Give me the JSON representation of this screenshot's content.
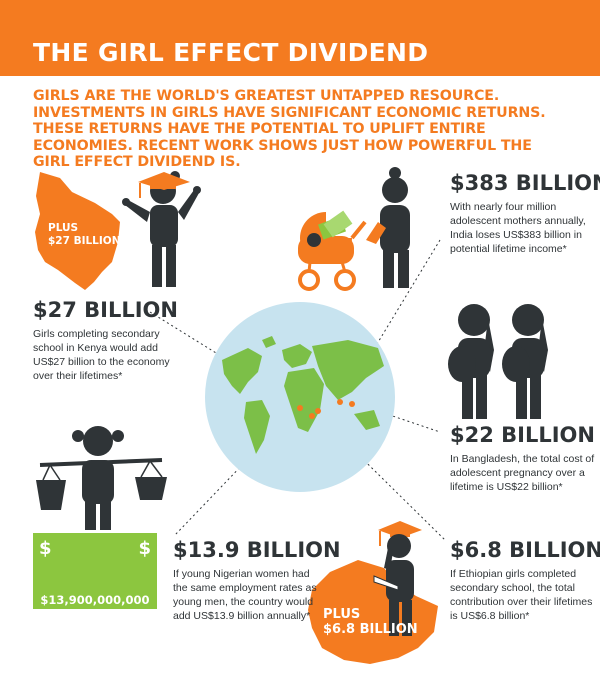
{
  "header": {
    "title": "THE GIRL EFFECT DIVIDEND"
  },
  "intro": "GIRLS ARE THE WORLD'S GREATEST UNTAPPED RESOURCE. INVESTMENTS IN GIRLS HAVE SIGNIFICANT ECONOMIC RETURNS. THESE RETURNS HAVE THE POTENTIAL TO UPLIFT ENTIRE ECONOMIES. RECENT WORK SHOWS JUST HOW POWERFUL THE GIRL EFFECT DIVIDEND IS.",
  "stats": {
    "india": {
      "amount": "$383 BILLION",
      "desc": "With nearly four million adolescent mothers annually, India loses US$383 billion in potential lifetime income*"
    },
    "kenya": {
      "amount": "$27 BILLION",
      "desc": "Girls completing secondary school in Kenya would add US$27 billion to the economy over their lifetimes*"
    },
    "bangladesh": {
      "amount": "$22 BILLION",
      "desc": "In Bangladesh, the total cost of adolescent pregnancy over a lifetime is US$22 billion*"
    },
    "nigeria": {
      "amount": "$13.9 BILLION",
      "desc": "If young Nigerian women had the same employment rates as young men, the country would add US$13.9 billion annually*"
    },
    "ethiopia": {
      "amount": "$6.8 BILLION",
      "desc": "If Ethiopian girls completed secondary school, the total contribution over their lifetimes is US$6.8 billion*"
    }
  },
  "tags": {
    "kenya_plus": "PLUS",
    "kenya_value": "$27 BILLION",
    "ethiopia_plus": "PLUS",
    "ethiopia_value": "$6.8 BILLION"
  },
  "money": {
    "symbol": "$",
    "amount": "$13,900,000,000"
  },
  "colors": {
    "orange": "#f47b20",
    "dark": "#2f3437",
    "green": "#8cc63f",
    "globe": "#c7e3ef",
    "land": "#7cbf48"
  }
}
